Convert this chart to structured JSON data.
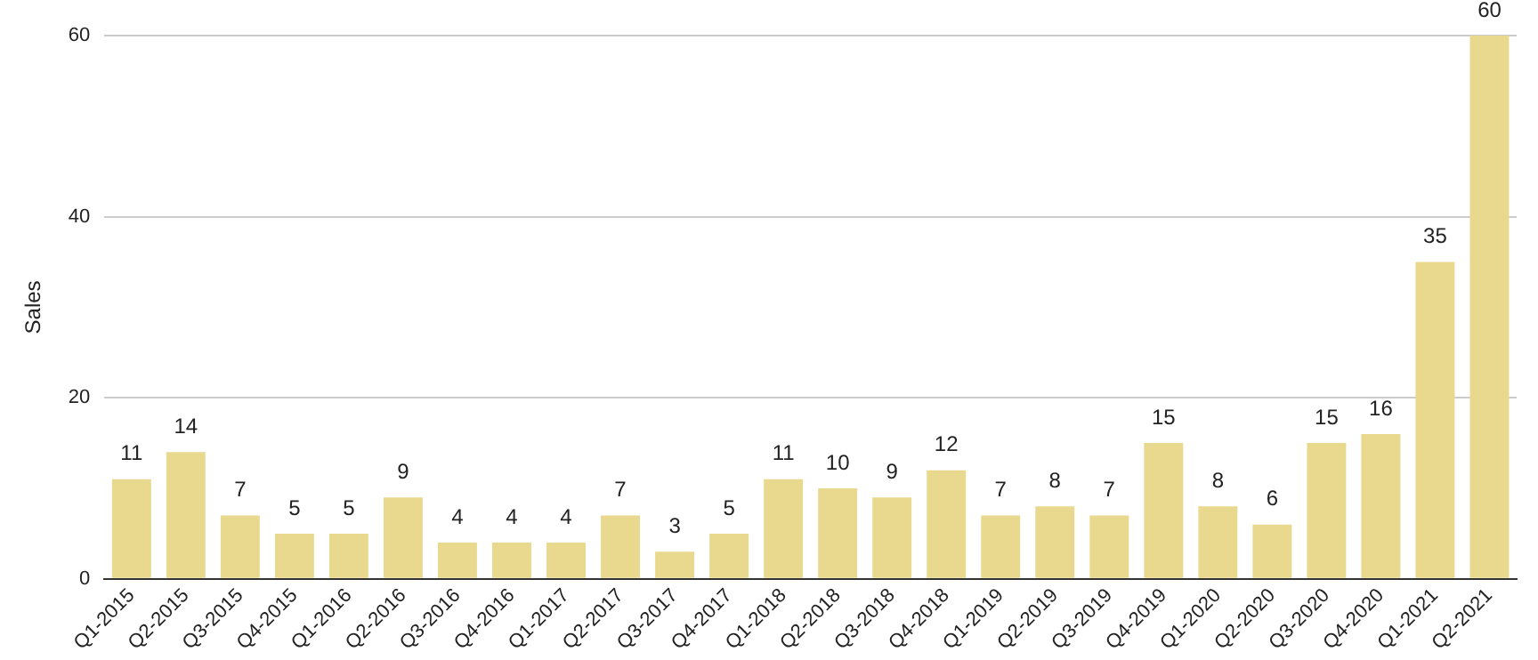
{
  "chart_data": {
    "type": "bar",
    "ylabel": "Sales",
    "categories": [
      "Q1-2015",
      "Q2-2015",
      "Q3-2015",
      "Q4-2015",
      "Q1-2016",
      "Q2-2016",
      "Q3-2016",
      "Q4-2016",
      "Q1-2017",
      "Q2-2017",
      "Q3-2017",
      "Q4-2017",
      "Q1-2018",
      "Q2-2018",
      "Q3-2018",
      "Q4-2018",
      "Q1-2019",
      "Q2-2019",
      "Q3-2019",
      "Q4-2019",
      "Q1-2020",
      "Q2-2020",
      "Q3-2020",
      "Q4-2020",
      "Q1-2021",
      "Q2-2021"
    ],
    "values": [
      11,
      14,
      7,
      5,
      5,
      9,
      4,
      4,
      4,
      7,
      3,
      5,
      11,
      10,
      9,
      12,
      7,
      8,
      7,
      15,
      8,
      6,
      15,
      16,
      35,
      60
    ],
    "color": "#e9d98e",
    "ylim": [
      0,
      60
    ],
    "yticks": [
      0,
      20,
      40,
      60
    ],
    "grid": "y",
    "data_labels": true
  }
}
